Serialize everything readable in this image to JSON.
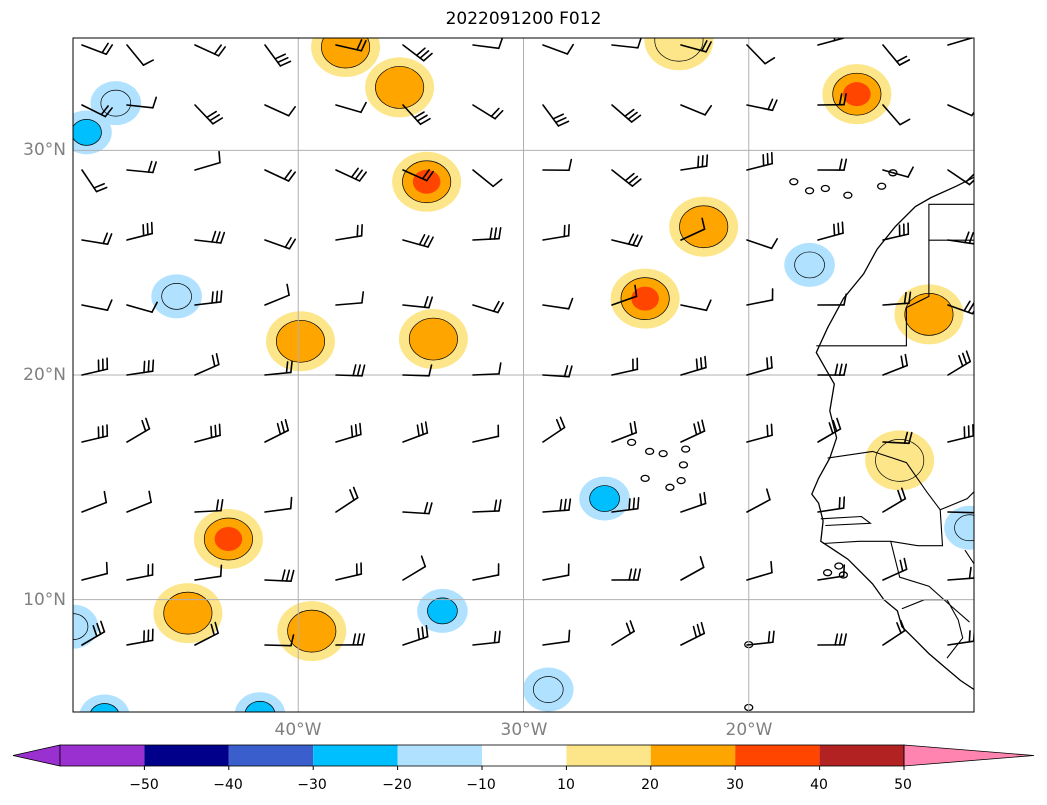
{
  "title": "2022091200 F012",
  "map": {
    "lat_range": [
      5,
      35
    ],
    "lon_range": [
      -50,
      -10
    ],
    "lat_gridlines": [
      10,
      20,
      30
    ],
    "lon_gridlines": [
      -40,
      -30,
      -20
    ],
    "lat_labels": [
      "10°N",
      "20°N",
      "30°N"
    ],
    "lon_labels": [
      "40°W",
      "30°W",
      "20°W"
    ],
    "grid": true,
    "coastlines": true
  },
  "colorbar": {
    "orientation": "horizontal",
    "extend": "both",
    "ticks": [
      "−50",
      "−40",
      "−30",
      "−20",
      "−10",
      "10",
      "20",
      "30",
      "40",
      "50"
    ],
    "colors": [
      "#9b30d0",
      "#00008b",
      "#3a5fcd",
      "#00bfff",
      "#b0e2ff",
      "#ffffff",
      "#fde68a",
      "#ffa500",
      "#ff4500",
      "#b22222",
      "#ff85b0"
    ]
  },
  "shaded_blobs": [
    {
      "lon": -34.3,
      "lat": 28.6,
      "level": 30
    },
    {
      "lon": -35.5,
      "lat": 32.8,
      "level": 20
    },
    {
      "lon": -37.9,
      "lat": 34.6,
      "level": 20
    },
    {
      "lon": -15.2,
      "lat": 32.5,
      "level": 30
    },
    {
      "lon": -22.0,
      "lat": 26.6,
      "level": 20
    },
    {
      "lon": -24.6,
      "lat": 23.4,
      "level": 30
    },
    {
      "lon": -34.0,
      "lat": 21.6,
      "level": 20
    },
    {
      "lon": -39.9,
      "lat": 21.5,
      "level": 20
    },
    {
      "lon": -12.0,
      "lat": 22.7,
      "level": 20
    },
    {
      "lon": -43.1,
      "lat": 12.7,
      "level": 30
    },
    {
      "lon": -44.9,
      "lat": 9.4,
      "level": 20
    },
    {
      "lon": -39.4,
      "lat": 8.6,
      "level": 20
    },
    {
      "lon": -13.3,
      "lat": 16.2,
      "level": 10
    },
    {
      "lon": -23.1,
      "lat": 34.9,
      "level": 10
    },
    {
      "lon": -26.4,
      "lat": 14.5,
      "level": -30
    },
    {
      "lon": -33.6,
      "lat": 9.5,
      "level": -30
    },
    {
      "lon": -48.6,
      "lat": 4.8,
      "level": -30
    },
    {
      "lon": -41.7,
      "lat": 4.9,
      "level": -30
    },
    {
      "lon": -49.4,
      "lat": 30.8,
      "level": -30
    },
    {
      "lon": -48.1,
      "lat": 32.1,
      "level": -10
    },
    {
      "lon": -45.4,
      "lat": 23.5,
      "level": -10
    },
    {
      "lon": -28.9,
      "lat": 6.0,
      "level": -10
    },
    {
      "lon": -17.3,
      "lat": 24.9,
      "level": -10
    },
    {
      "lon": -10.2,
      "lat": 13.2,
      "level": -10
    },
    {
      "lon": -50.0,
      "lat": 8.8,
      "level": -10
    }
  ]
}
